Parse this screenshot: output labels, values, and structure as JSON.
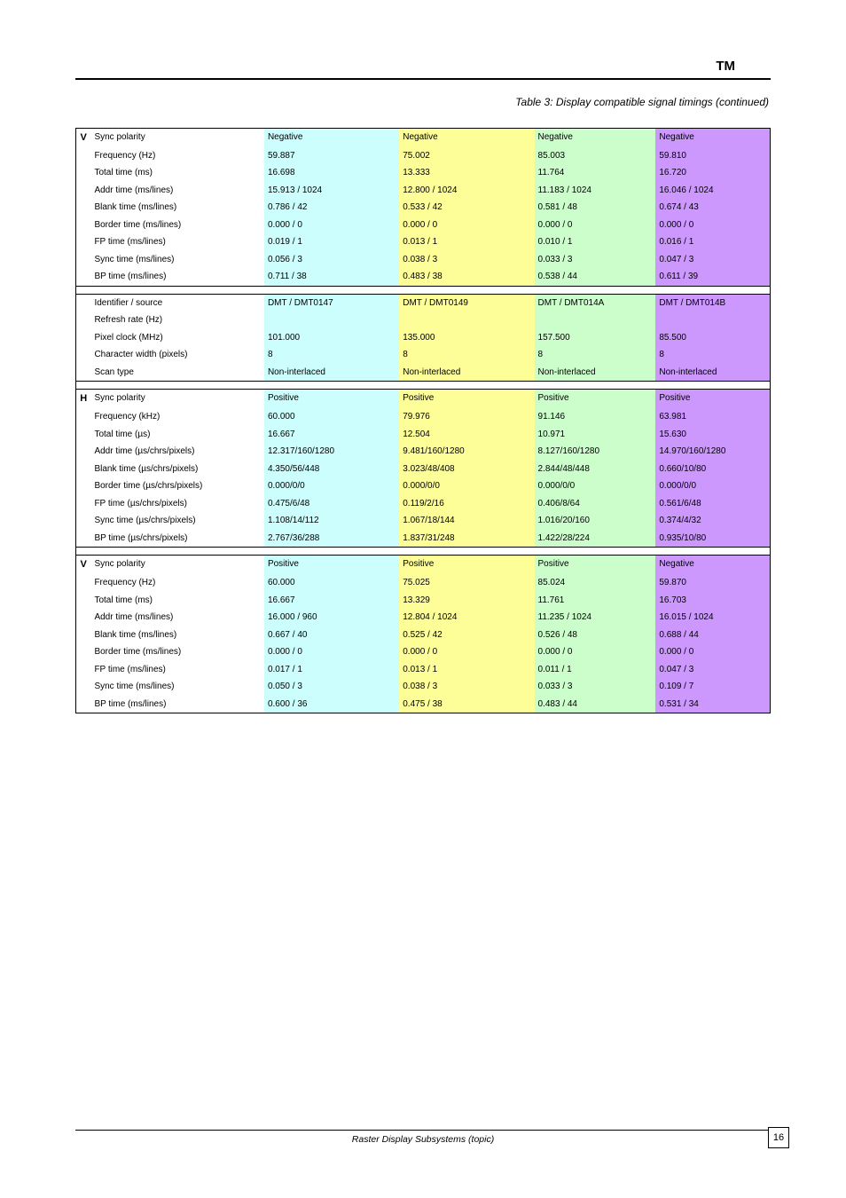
{
  "header": {
    "left": "TM",
    "right": ""
  },
  "subtitle": "Table 3: Display compatible signal timings (continued)",
  "columns": {
    "colors": {
      "c2": "#ccfefe",
      "c3": "#fefe99",
      "c4": "#ccfecc",
      "c5": "#cc98fe"
    }
  },
  "blocks": [
    {
      "sig": "V",
      "rows": [
        {
          "name": "Sync polarity",
          "c2": "Negative",
          "c3": "Negative",
          "c4": "Negative",
          "c5": "Negative"
        },
        {
          "name": "Frequency (Hz)",
          "c2": "59.887",
          "c3": "75.002",
          "c4": "85.003",
          "c5": "59.810"
        },
        {
          "name": "Total time (ms)",
          "c2": "16.698",
          "c3": "13.333",
          "c4": "11.764",
          "c5": "16.720"
        },
        {
          "name": "Addr time (ms/lines)",
          "c2": "15.913 / 1024",
          "c3": "12.800 / 1024",
          "c4": "11.183 / 1024",
          "c5": "16.046 / 1024"
        },
        {
          "name": "Blank time (ms/lines)",
          "c2": "0.786 / 42",
          "c3": "0.533 / 42",
          "c4": "0.581 / 48",
          "c5": "0.674 / 43"
        },
        {
          "name": "Border time (ms/lines)",
          "c2": "0.000 / 0",
          "c3": "0.000 / 0",
          "c4": "0.000 / 0",
          "c5": "0.000 / 0"
        },
        {
          "name": "FP time (ms/lines)",
          "c2": "0.019 / 1",
          "c3": "0.013 / 1",
          "c4": "0.010 / 1",
          "c5": "0.016 / 1"
        },
        {
          "name": "Sync time (ms/lines)",
          "c2": "0.056 / 3",
          "c3": "0.038 / 3",
          "c4": "0.033 / 3",
          "c5": "0.047 / 3"
        },
        {
          "name": "BP time (ms/lines)",
          "c2": "0.711 / 38",
          "c3": "0.483 / 38",
          "c4": "0.538 / 44",
          "c5": "0.611 / 39"
        }
      ]
    },
    {
      "sig": "",
      "rows": [
        {
          "name": "Identifier / source",
          "c2": "DMT / DMT0147",
          "c3": "DMT / DMT0149",
          "c4": "DMT / DMT014A",
          "c5": "DMT / DMT014B"
        },
        {
          "name": "Refresh rate (Hz)",
          "c2": "",
          "c3": "",
          "c4": "",
          "c5": ""
        },
        {
          "name": "Pixel clock (MHz)",
          "c2": "101.000",
          "c3": "135.000",
          "c4": "157.500",
          "c5": "85.500"
        },
        {
          "name": "Character width (pixels)",
          "c2": "8",
          "c3": "8",
          "c4": "8",
          "c5": "8"
        },
        {
          "name": "Scan type",
          "c2": "Non-interlaced",
          "c3": "Non-interlaced",
          "c4": "Non-interlaced",
          "c5": "Non-interlaced"
        }
      ]
    },
    {
      "sig": "H",
      "rows": [
        {
          "name": "Sync polarity",
          "c2": "Positive",
          "c3": "Positive",
          "c4": "Positive",
          "c5": "Positive"
        },
        {
          "name": "Frequency (kHz)",
          "c2": "60.000",
          "c3": "79.976",
          "c4": "91.146",
          "c5": "63.981"
        },
        {
          "name": "Total time (µs)",
          "c2": "16.667",
          "c3": "12.504",
          "c4": "10.971",
          "c5": "15.630"
        },
        {
          "name": "Addr time (µs/chrs/pixels)",
          "c2": "12.317/160/1280",
          "c3": "9.481/160/1280",
          "c4": "8.127/160/1280",
          "c5": "14.970/160/1280"
        },
        {
          "name": "Blank time (µs/chrs/pixels)",
          "c2": "4.350/56/448",
          "c3": "3.023/48/408",
          "c4": "2.844/48/448",
          "c5": "0.660/10/80"
        },
        {
          "name": "Border time (µs/chrs/pixels)",
          "c2": "0.000/0/0",
          "c3": "0.000/0/0",
          "c4": "0.000/0/0",
          "c5": "0.000/0/0"
        },
        {
          "name": "FP time (µs/chrs/pixels)",
          "c2": "0.475/6/48",
          "c3": "0.119/2/16",
          "c4": "0.406/8/64",
          "c5": "0.561/6/48"
        },
        {
          "name": "Sync time (µs/chrs/pixels)",
          "c2": "1.108/14/112",
          "c3": "1.067/18/144",
          "c4": "1.016/20/160",
          "c5": "0.374/4/32"
        },
        {
          "name": "BP time (µs/chrs/pixels)",
          "c2": "2.767/36/288",
          "c3": "1.837/31/248",
          "c4": "1.422/28/224",
          "c5": "0.935/10/80"
        }
      ]
    },
    {
      "sig": "V",
      "rows": [
        {
          "name": "Sync polarity",
          "c2": "Positive",
          "c3": "Positive",
          "c4": "Positive",
          "c5": "Negative"
        },
        {
          "name": "Frequency (Hz)",
          "c2": "60.000",
          "c3": "75.025",
          "c4": "85.024",
          "c5": "59.870"
        },
        {
          "name": "Total time (ms)",
          "c2": "16.667",
          "c3": "13.329",
          "c4": "11.761",
          "c5": "16.703"
        },
        {
          "name": "Addr time (ms/lines)",
          "c2": "16.000 / 960",
          "c3": "12.804 / 1024",
          "c4": "11.235 / 1024",
          "c5": "16.015 / 1024"
        },
        {
          "name": "Blank time (ms/lines)",
          "c2": "0.667 / 40",
          "c3": "0.525 / 42",
          "c4": "0.526 / 48",
          "c5": "0.688 / 44"
        },
        {
          "name": "Border time (ms/lines)",
          "c2": "0.000 / 0",
          "c3": "0.000 / 0",
          "c4": "0.000 / 0",
          "c5": "0.000 / 0"
        },
        {
          "name": "FP time (ms/lines)",
          "c2": "0.017 / 1",
          "c3": "0.013 / 1",
          "c4": "0.011 / 1",
          "c5": "0.047 / 3"
        },
        {
          "name": "Sync time (ms/lines)",
          "c2": "0.050 / 3",
          "c3": "0.038 / 3",
          "c4": "0.033 / 3",
          "c5": "0.109 / 7"
        },
        {
          "name": "BP time (ms/lines)",
          "c2": "0.600 / 36",
          "c3": "0.475 / 38",
          "c4": "0.483 / 44",
          "c5": "0.531 / 34"
        }
      ]
    }
  ],
  "footer": {
    "label": "Raster Display Subsystems (topic)",
    "page": "16"
  }
}
